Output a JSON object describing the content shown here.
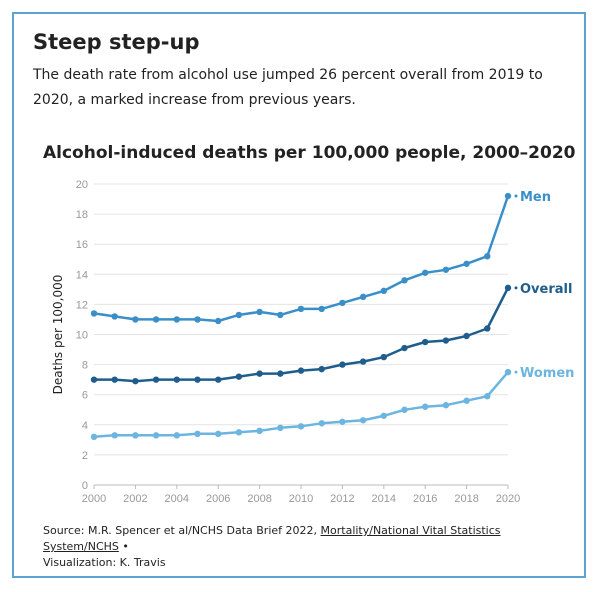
{
  "header": {
    "title": "Steep step-up",
    "subtitle": "The death rate from alcohol use jumped 26 percent overall from 2019 to 2020, a marked increase from previous years."
  },
  "chart_data": {
    "type": "line",
    "title": "Alcohol-induced deaths per 100,000 people, 2000–2020",
    "xlabel": "",
    "ylabel": "Deaths per 100,000",
    "xlim": [
      2000,
      2020
    ],
    "ylim": [
      0,
      20
    ],
    "x": [
      2000,
      2001,
      2002,
      2003,
      2004,
      2005,
      2006,
      2007,
      2008,
      2009,
      2010,
      2011,
      2012,
      2013,
      2014,
      2015,
      2016,
      2017,
      2018,
      2019,
      2020
    ],
    "x_ticks": [
      "2000",
      "2002",
      "2004",
      "2006",
      "2008",
      "2010",
      "2012",
      "2014",
      "2016",
      "2018",
      "2020"
    ],
    "y_ticks": [
      "0",
      "2",
      "4",
      "6",
      "8",
      "10",
      "12",
      "14",
      "16",
      "18",
      "20"
    ],
    "grid": true,
    "series": [
      {
        "name": "Men",
        "color": "#3a8fc9",
        "values": [
          11.4,
          11.2,
          11.0,
          11.0,
          11.0,
          11.0,
          10.9,
          11.3,
          11.5,
          11.3,
          11.7,
          11.7,
          12.1,
          12.5,
          12.9,
          13.6,
          14.1,
          14.3,
          14.7,
          15.2,
          19.2
        ]
      },
      {
        "name": "Overall",
        "color": "#1f5e8c",
        "values": [
          7.0,
          7.0,
          6.9,
          7.0,
          7.0,
          7.0,
          7.0,
          7.2,
          7.4,
          7.4,
          7.6,
          7.7,
          8.0,
          8.2,
          8.5,
          9.1,
          9.5,
          9.6,
          9.9,
          10.4,
          13.1
        ]
      },
      {
        "name": "Women",
        "color": "#6bb5e0",
        "values": [
          3.2,
          3.3,
          3.3,
          3.3,
          3.3,
          3.4,
          3.4,
          3.5,
          3.6,
          3.8,
          3.9,
          4.1,
          4.2,
          4.3,
          4.6,
          5.0,
          5.2,
          5.3,
          5.6,
          5.9,
          7.5
        ]
      }
    ]
  },
  "source": {
    "prefix": "Source: M.R. Spencer et al/NCHS Data Brief 2022, ",
    "link": "Mortality/National Vital Statistics System/NCHS",
    "suffix": " •",
    "credit": "Visualization: K. Travis"
  }
}
